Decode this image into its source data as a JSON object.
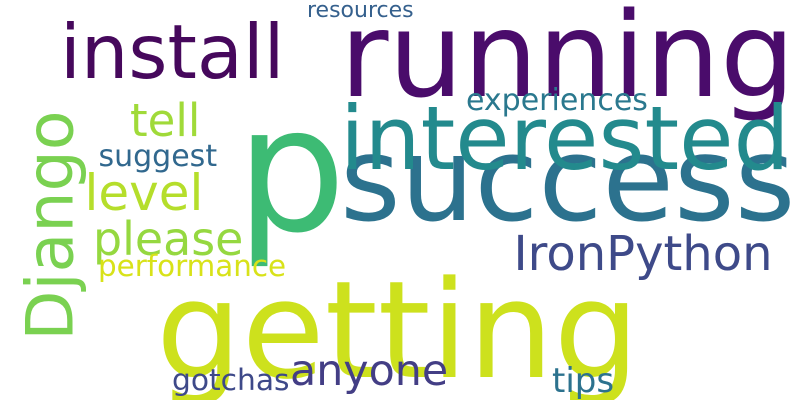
{
  "background": "#ffffff",
  "words": [
    {
      "key": "p",
      "text": "p",
      "color": "#3dbb74"
    },
    {
      "key": "getting",
      "text": "getting",
      "color": "#cde11d"
    },
    {
      "key": "running",
      "text": "running",
      "color": "#4a0c6b"
    },
    {
      "key": "success",
      "text": "success",
      "color": "#2c728e"
    },
    {
      "key": "install",
      "text": "install",
      "color": "#46085c"
    },
    {
      "key": "interested",
      "text": "interested",
      "color": "#238a8d"
    },
    {
      "key": "django",
      "text": "Django",
      "color": "#7ad151"
    },
    {
      "key": "ironpython",
      "text": "IronPython",
      "color": "#3e4a89"
    },
    {
      "key": "anyone",
      "text": "anyone",
      "color": "#433e85"
    },
    {
      "key": "level",
      "text": "level",
      "color": "#b5de2b"
    },
    {
      "key": "please",
      "text": "please",
      "color": "#95d840"
    },
    {
      "key": "tell",
      "text": "tell",
      "color": "#a0da39"
    },
    {
      "key": "experiences",
      "text": "experiences",
      "color": "#2a788e"
    },
    {
      "key": "suggest",
      "text": "suggest",
      "color": "#31688e"
    },
    {
      "key": "performance",
      "text": "performance",
      "color": "#d8e219"
    },
    {
      "key": "gotchas",
      "text": "gotchas",
      "color": "#3e4989"
    },
    {
      "key": "tips",
      "text": "tips",
      "color": "#2c728e"
    },
    {
      "key": "resources",
      "text": "resources",
      "color": "#35608d"
    }
  ]
}
